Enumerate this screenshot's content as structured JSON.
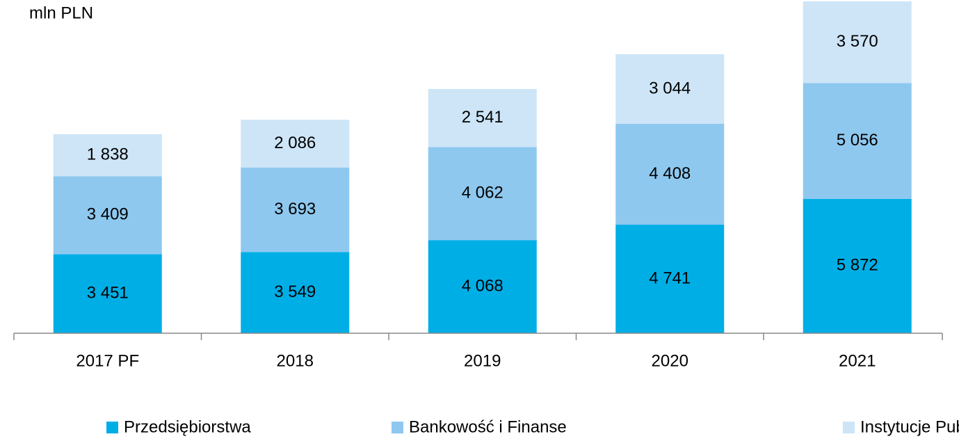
{
  "chart_data": {
    "type": "stacked_bar",
    "title": "mln PLN",
    "categories": [
      "2017 PF",
      "2018",
      "2019",
      "2020",
      "2021"
    ],
    "series": [
      {
        "name": "Przedsiębiorstwa",
        "color": "#00aee6",
        "values": [
          3451,
          3549,
          4068,
          4741,
          5872
        ],
        "value_labels": [
          "3 451",
          "3 549",
          "4 068",
          "4 741",
          "5 872"
        ]
      },
      {
        "name": "Bankowość i Finanse",
        "color": "#8ec8ef",
        "values": [
          3409,
          3693,
          4062,
          4408,
          5056
        ],
        "value_labels": [
          "3 409",
          "3 693",
          "4 062",
          "4 408",
          "5 056"
        ]
      },
      {
        "name": "Instytucje Publiczne",
        "color": "#cde5f7",
        "values": [
          1838,
          2086,
          2541,
          3044,
          3570
        ],
        "value_labels": [
          "1 838",
          "2 086",
          "2 541",
          "3 044",
          "3 570"
        ]
      }
    ],
    "legend": "bottom"
  }
}
